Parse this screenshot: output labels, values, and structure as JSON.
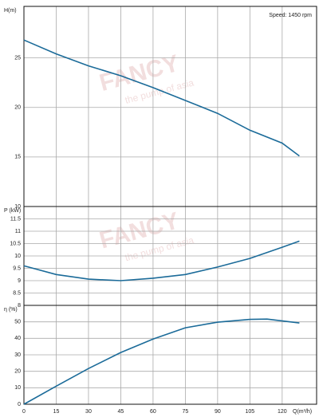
{
  "chart_data": [
    {
      "type": "line",
      "ylabel": "H(m)",
      "annotation": "Speed: 1450 rpm",
      "watermark": "FANCY",
      "watermark_tagline": "the pump of asia",
      "x": [
        0,
        15,
        30,
        45,
        60,
        75,
        90,
        105,
        120,
        128
      ],
      "series": [
        {
          "name": "H",
          "color": "#1b6b99",
          "values": [
            26.8,
            25.4,
            24.2,
            23.2,
            22.0,
            20.7,
            19.4,
            17.7,
            16.4,
            15.1
          ]
        }
      ],
      "xlim": [
        0,
        136
      ],
      "xticks": [
        0,
        15,
        30,
        45,
        60,
        75,
        90,
        105,
        120
      ],
      "ylim": [
        10,
        30.2
      ],
      "yticks": [
        10,
        15,
        20,
        25
      ],
      "grid": true
    },
    {
      "type": "line",
      "ylabel": "P (kW)",
      "watermark": "FANCY",
      "watermark_tagline": "the pump of asia",
      "x": [
        0,
        15,
        30,
        45,
        60,
        75,
        90,
        105,
        120,
        128
      ],
      "series": [
        {
          "name": "P",
          "color": "#1b6b99",
          "values": [
            9.6,
            9.25,
            9.06,
            9.0,
            9.1,
            9.25,
            9.55,
            9.9,
            10.35,
            10.6
          ]
        }
      ],
      "xlim": [
        0,
        136
      ],
      "xticks": [
        0,
        15,
        30,
        45,
        60,
        75,
        90,
        105,
        120
      ],
      "ylim": [
        8,
        12
      ],
      "yticks": [
        8,
        8.5,
        9,
        9.5,
        10,
        10.5,
        11,
        11.5
      ],
      "grid": true
    },
    {
      "type": "line",
      "ylabel": "η (%)",
      "xlabel": "Q(m³/h)",
      "x": [
        0,
        15,
        30,
        45,
        60,
        75,
        90,
        105,
        113,
        128
      ],
      "series": [
        {
          "name": "η",
          "color": "#1b6b99",
          "values": [
            0,
            11,
            21.7,
            31.4,
            39.6,
            46.4,
            49.8,
            51.5,
            51.7,
            49.3
          ]
        }
      ],
      "xlim": [
        0,
        136
      ],
      "xticks": [
        0,
        15,
        30,
        45,
        60,
        75,
        90,
        105,
        120
      ],
      "ylim": [
        0,
        60
      ],
      "yticks": [
        0,
        10,
        20,
        30,
        40,
        50
      ],
      "grid": true
    }
  ]
}
